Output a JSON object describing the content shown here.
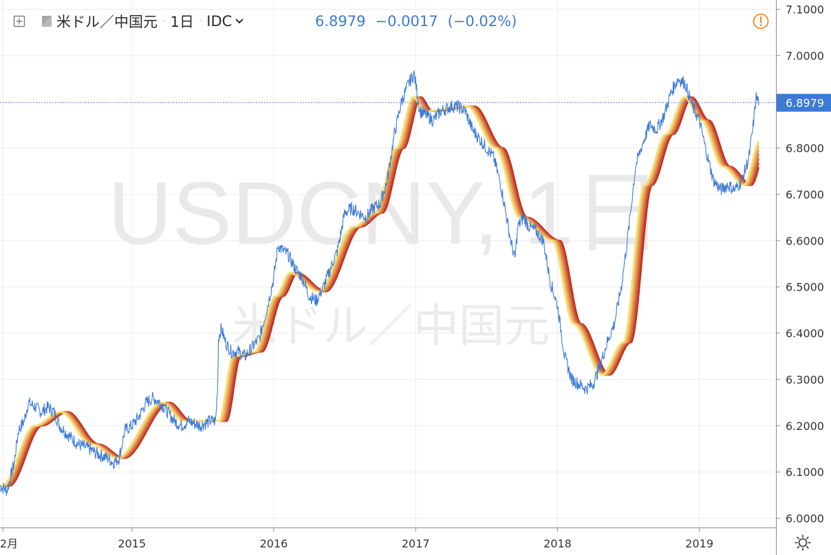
{
  "legend": {
    "symbol_name": "米ドル／中国元",
    "interval": "1日",
    "source": "IDC",
    "last_price": "6.8979",
    "change": "−0.0017",
    "change_percent": "(−0.02%)"
  },
  "watermark": {
    "line1": "USDCNY, 1日",
    "line2": "米ドル／中国元"
  },
  "price_label": "6.8979",
  "chart_data": {
    "type": "line",
    "y_axis": {
      "range": [
        5.98,
        7.12
      ],
      "ticks": [
        "7.1000",
        "7.0000",
        "6.9000",
        "6.8000",
        "6.7000",
        "6.6000",
        "6.5000",
        "6.4000",
        "6.3000",
        "6.2000",
        "6.1000",
        "6.0000"
      ],
      "position": "right"
    },
    "x_axis": {
      "range": [
        2014.07,
        2019.54
      ],
      "ticks": [
        {
          "label": "2月",
          "x": 2014.09
        },
        {
          "label": "2015",
          "x": 2015.0
        },
        {
          "label": "2016",
          "x": 2016.0
        },
        {
          "label": "2017",
          "x": 2017.0
        },
        {
          "label": "2018",
          "x": 2018.0
        },
        {
          "label": "2019",
          "x": 2019.0
        }
      ]
    },
    "grid": true,
    "last_price_line": 6.8979,
    "colors": {
      "price": "#3d7ad6",
      "ribbon_fast": "#f6e27a",
      "ribbon_slow": "#c2261b",
      "grid": "#ececec",
      "axis": "#8a8a8a"
    },
    "price_series": [
      [
        2014.07,
        6.07
      ],
      [
        2014.12,
        6.06
      ],
      [
        2014.17,
        6.12
      ],
      [
        2014.2,
        6.19
      ],
      [
        2014.24,
        6.21
      ],
      [
        2014.27,
        6.25
      ],
      [
        2014.32,
        6.24
      ],
      [
        2014.36,
        6.23
      ],
      [
        2014.41,
        6.24
      ],
      [
        2014.45,
        6.23
      ],
      [
        2014.49,
        6.2
      ],
      [
        2014.55,
        6.18
      ],
      [
        2014.62,
        6.16
      ],
      [
        2014.7,
        6.15
      ],
      [
        2014.75,
        6.14
      ],
      [
        2014.83,
        6.13
      ],
      [
        2014.87,
        6.12
      ],
      [
        2014.91,
        6.13
      ],
      [
        2014.95,
        6.19
      ],
      [
        2015.0,
        6.2
      ],
      [
        2015.05,
        6.22
      ],
      [
        2015.1,
        6.25
      ],
      [
        2015.15,
        6.26
      ],
      [
        2015.2,
        6.25
      ],
      [
        2015.25,
        6.23
      ],
      [
        2015.3,
        6.21
      ],
      [
        2015.35,
        6.2
      ],
      [
        2015.4,
        6.21
      ],
      [
        2015.48,
        6.2
      ],
      [
        2015.55,
        6.21
      ],
      [
        2015.59,
        6.21
      ],
      [
        2015.605,
        6.29
      ],
      [
        2015.61,
        6.39
      ],
      [
        2015.63,
        6.41
      ],
      [
        2015.66,
        6.38
      ],
      [
        2015.7,
        6.36
      ],
      [
        2015.75,
        6.36
      ],
      [
        2015.8,
        6.35
      ],
      [
        2015.85,
        6.37
      ],
      [
        2015.9,
        6.39
      ],
      [
        2015.95,
        6.45
      ],
      [
        2016.0,
        6.52
      ],
      [
        2016.03,
        6.59
      ],
      [
        2016.06,
        6.58
      ],
      [
        2016.1,
        6.57
      ],
      [
        2016.15,
        6.54
      ],
      [
        2016.2,
        6.52
      ],
      [
        2016.25,
        6.48
      ],
      [
        2016.3,
        6.47
      ],
      [
        2016.35,
        6.5
      ],
      [
        2016.4,
        6.54
      ],
      [
        2016.45,
        6.58
      ],
      [
        2016.5,
        6.66
      ],
      [
        2016.55,
        6.67
      ],
      [
        2016.6,
        6.66
      ],
      [
        2016.65,
        6.65
      ],
      [
        2016.7,
        6.67
      ],
      [
        2016.75,
        6.68
      ],
      [
        2016.8,
        6.73
      ],
      [
        2016.85,
        6.83
      ],
      [
        2016.9,
        6.9
      ],
      [
        2016.95,
        6.94
      ],
      [
        2016.99,
        6.96
      ],
      [
        2017.03,
        6.88
      ],
      [
        2017.08,
        6.87
      ],
      [
        2017.12,
        6.86
      ],
      [
        2017.18,
        6.88
      ],
      [
        2017.25,
        6.89
      ],
      [
        2017.3,
        6.89
      ],
      [
        2017.35,
        6.88
      ],
      [
        2017.4,
        6.84
      ],
      [
        2017.45,
        6.82
      ],
      [
        2017.5,
        6.8
      ],
      [
        2017.55,
        6.78
      ],
      [
        2017.6,
        6.72
      ],
      [
        2017.63,
        6.67
      ],
      [
        2017.67,
        6.6
      ],
      [
        2017.7,
        6.56
      ],
      [
        2017.72,
        6.63
      ],
      [
        2017.76,
        6.65
      ],
      [
        2017.8,
        6.63
      ],
      [
        2017.85,
        6.62
      ],
      [
        2017.9,
        6.6
      ],
      [
        2017.95,
        6.51
      ],
      [
        2018.0,
        6.46
      ],
      [
        2018.05,
        6.35
      ],
      [
        2018.1,
        6.3
      ],
      [
        2018.15,
        6.29
      ],
      [
        2018.2,
        6.28
      ],
      [
        2018.25,
        6.29
      ],
      [
        2018.3,
        6.33
      ],
      [
        2018.35,
        6.38
      ],
      [
        2018.4,
        6.42
      ],
      [
        2018.45,
        6.5
      ],
      [
        2018.5,
        6.62
      ],
      [
        2018.55,
        6.76
      ],
      [
        2018.6,
        6.81
      ],
      [
        2018.65,
        6.85
      ],
      [
        2018.7,
        6.84
      ],
      [
        2018.75,
        6.87
      ],
      [
        2018.8,
        6.92
      ],
      [
        2018.85,
        6.95
      ],
      [
        2018.9,
        6.94
      ],
      [
        2018.95,
        6.89
      ],
      [
        2019.0,
        6.86
      ],
      [
        2019.05,
        6.79
      ],
      [
        2019.1,
        6.73
      ],
      [
        2019.15,
        6.71
      ],
      [
        2019.2,
        6.72
      ],
      [
        2019.25,
        6.71
      ],
      [
        2019.3,
        6.73
      ],
      [
        2019.35,
        6.78
      ],
      [
        2019.38,
        6.85
      ],
      [
        2019.4,
        6.91
      ],
      [
        2019.42,
        6.9
      ]
    ],
    "ribbon_anchors": [
      [
        2014.07,
        6.07
      ],
      [
        2014.3,
        6.2
      ],
      [
        2014.48,
        6.23
      ],
      [
        2014.7,
        6.16
      ],
      [
        2014.88,
        6.13
      ],
      [
        2015.2,
        6.25
      ],
      [
        2015.35,
        6.21
      ],
      [
        2015.6,
        6.21
      ],
      [
        2015.7,
        6.35
      ],
      [
        2015.85,
        6.36
      ],
      [
        2016.0,
        6.48
      ],
      [
        2016.1,
        6.53
      ],
      [
        2016.3,
        6.49
      ],
      [
        2016.55,
        6.63
      ],
      [
        2016.7,
        6.66
      ],
      [
        2016.85,
        6.8
      ],
      [
        2016.97,
        6.91
      ],
      [
        2017.05,
        6.88
      ],
      [
        2017.35,
        6.89
      ],
      [
        2017.55,
        6.8
      ],
      [
        2017.72,
        6.65
      ],
      [
        2017.95,
        6.6
      ],
      [
        2018.1,
        6.42
      ],
      [
        2018.3,
        6.31
      ],
      [
        2018.45,
        6.38
      ],
      [
        2018.6,
        6.72
      ],
      [
        2018.75,
        6.83
      ],
      [
        2018.88,
        6.91
      ],
      [
        2019.0,
        6.86
      ],
      [
        2019.15,
        6.76
      ],
      [
        2019.3,
        6.72
      ],
      [
        2019.42,
        6.82
      ]
    ],
    "ribbon_count": 8
  }
}
